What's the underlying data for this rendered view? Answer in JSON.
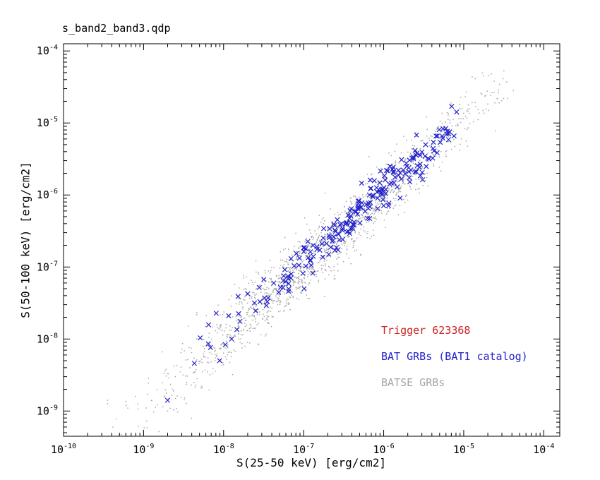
{
  "chart_data": {
    "type": "scatter",
    "title": "s_band2_band3.qdp",
    "xlabel": "S(25-50 keV) [erg/cm2]",
    "ylabel": "S(50-100 keV) [erg/cm2]",
    "xscale": "log",
    "yscale": "log",
    "grid": false,
    "background": "#ffffff",
    "frame_color": "#000000",
    "xlim_log10": [
      -10,
      -3.8
    ],
    "ylim_log10": [
      -9.35,
      -3.9
    ],
    "xticks_log10": [
      -10,
      -9,
      -8,
      -7,
      -6,
      -5,
      -4
    ],
    "yticks_log10": [
      -9,
      -8,
      -7,
      -6,
      -5,
      -4
    ],
    "legend": [
      {
        "text": "Trigger 623368",
        "color": "#cc2222"
      },
      {
        "text": "BAT GRBs (BAT1 catalog)",
        "color": "#2222cc"
      },
      {
        "text": "BATSE GRBs",
        "color": "#a6a6a6"
      }
    ],
    "series": [
      {
        "name": "BATSE GRBs",
        "marker": "dot",
        "color": "#a6a6a6",
        "size": 1.5,
        "count": 1600,
        "seed": 20240601,
        "logx_mean": -6.75,
        "logx_sigma": 1.05,
        "logx_min": -9.55,
        "logx_max": -4.45,
        "logratio_mean": 0.02,
        "logratio_sigma": 0.2,
        "spread_slope": 0.12,
        "extra_points_log10": [
          [
            -8.7,
            -9.0
          ],
          [
            -8.4,
            -9.1
          ],
          [
            -4.38,
            -4.55
          ],
          [
            -4.62,
            -4.42
          ],
          [
            -9.45,
            -8.85
          ]
        ]
      },
      {
        "name": "BAT GRBs (BAT1 catalog)",
        "marker": "x",
        "color": "#2222cc",
        "size": 3.2,
        "count": 230,
        "seed": 777333,
        "logx_mean": -6.35,
        "logx_sigma": 0.8,
        "logx_min": -8.4,
        "logx_max": -5.05,
        "logratio_mean": 0.06,
        "logratio_sigma": 0.13,
        "spread_slope": 0.1,
        "extra_points_log10": [
          [
            -8.7,
            -8.85
          ],
          [
            -8.05,
            -8.3
          ],
          [
            -7.9,
            -8.0
          ],
          [
            -5.15,
            -4.77
          ],
          [
            -5.12,
            -5.18
          ]
        ]
      }
    ]
  }
}
